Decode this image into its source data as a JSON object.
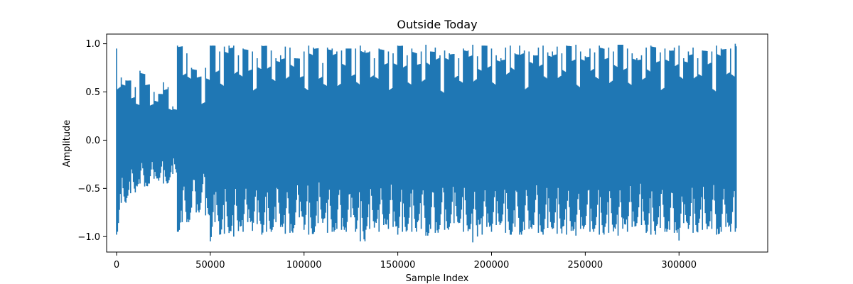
{
  "chart_data": {
    "type": "line",
    "title": "Outside Today",
    "xlabel": "Sample Index",
    "ylabel": "Amplitude",
    "xlim": [
      -5300,
      347300
    ],
    "ylim": [
      -1.16,
      1.1
    ],
    "x_ticks": [
      0,
      50000,
      100000,
      150000,
      200000,
      250000,
      300000
    ],
    "x_tick_labels": [
      "0",
      "50000",
      "100000",
      "150000",
      "200000",
      "250000",
      "300000"
    ],
    "y_ticks": [
      -1.0,
      -0.5,
      0.0,
      0.5,
      1.0
    ],
    "y_tick_labels": [
      "−1.0",
      "−0.5",
      "0.0",
      "0.5",
      "1.0"
    ],
    "grid": false,
    "series": [
      {
        "color": "#1f77b4",
        "x_start": 0,
        "x_end": 330500,
        "x_step": 2500,
        "envelope_max": [
          0.95,
          0.65,
          0.62,
          0.55,
          0.55,
          0.72,
          0.6,
          0.55,
          0.5,
          0.48,
          0.6,
          0.55,
          0.35,
          0.98,
          0.9,
          0.9,
          0.75,
          0.7,
          0.62,
          0.75,
          0.98,
          0.85,
          0.92,
          0.97,
          0.98,
          0.98,
          0.88,
          0.95,
          0.8,
          0.92,
          0.85,
          0.98,
          0.94,
          0.93,
          0.85,
          0.88,
          0.97,
          0.96,
          0.85,
          0.75,
          0.92,
          0.98,
          0.96,
          0.85,
          0.8,
          0.96,
          0.95,
          0.92,
          0.93,
          0.95,
          0.8,
          0.95,
          0.98,
          0.93,
          0.92,
          0.85,
          0.95,
          0.87,
          0.92,
          0.9,
          0.98,
          0.95,
          0.88,
          0.95,
          0.82,
          0.92,
          0.99,
          0.92,
          0.96,
          0.88,
          0.93,
          0.9,
          0.86,
          0.85,
          0.95,
          0.93,
          0.99,
          0.87,
          0.98,
          0.9,
          0.95,
          0.88,
          0.85,
          0.96,
          0.98,
          0.9,
          0.98,
          0.93,
          0.92,
          0.88,
          0.96,
          0.98,
          0.91,
          0.92,
          0.97,
          0.9,
          0.98,
          0.94,
          0.99,
          0.92,
          0.87,
          0.95,
          0.91,
          0.98,
          0.9,
          0.96,
          0.92,
          0.99,
          0.87,
          0.95,
          0.9,
          0.85,
          0.88,
          0.96,
          0.98,
          0.89,
          0.91,
          0.95,
          0.93,
          0.96,
          0.98,
          0.85,
          0.92,
          0.96,
          0.85,
          0.93,
          0.9,
          0.92,
          0.98,
          0.95,
          0.9,
          0.95,
          1.0
        ],
        "envelope_min": [
          -0.98,
          -0.65,
          -0.6,
          -0.55,
          -0.48,
          -0.45,
          -0.48,
          -0.45,
          -0.4,
          -0.42,
          -0.45,
          -0.42,
          -0.35,
          -0.95,
          -0.85,
          -0.85,
          -0.7,
          -0.75,
          -0.62,
          -0.78,
          -1.05,
          -0.85,
          -0.98,
          -0.97,
          -0.95,
          -1.0,
          -0.9,
          -0.95,
          -0.85,
          -0.94,
          -0.87,
          -0.98,
          -0.95,
          -0.93,
          -0.85,
          -0.9,
          -0.97,
          -0.96,
          -0.88,
          -0.8,
          -0.93,
          -0.98,
          -0.96,
          -0.86,
          -0.82,
          -0.96,
          -0.95,
          -0.92,
          -0.93,
          -0.95,
          -0.8,
          -0.95,
          -1.05,
          -0.93,
          -0.92,
          -0.86,
          -0.95,
          -0.88,
          -0.92,
          -0.9,
          -0.98,
          -0.95,
          -0.88,
          -0.95,
          -0.85,
          -0.92,
          -0.99,
          -0.92,
          -0.96,
          -0.88,
          -0.93,
          -0.9,
          -0.86,
          -0.86,
          -0.95,
          -0.93,
          -1.06,
          -0.88,
          -0.98,
          -0.9,
          -0.95,
          -0.88,
          -0.86,
          -0.96,
          -0.98,
          -0.9,
          -0.98,
          -0.93,
          -0.92,
          -0.88,
          -0.96,
          -0.98,
          -0.91,
          -0.92,
          -0.97,
          -0.9,
          -0.98,
          -0.94,
          -0.99,
          -0.92,
          -0.88,
          -0.95,
          -0.91,
          -0.98,
          -0.9,
          -0.96,
          -0.92,
          -0.99,
          -0.88,
          -0.95,
          -0.9,
          -0.86,
          -0.88,
          -0.96,
          -0.98,
          -0.89,
          -0.91,
          -0.95,
          -0.93,
          -0.96,
          -1.04,
          -0.86,
          -0.92,
          -0.96,
          -0.86,
          -0.93,
          -0.9,
          -0.92,
          -0.98,
          -0.95,
          -0.9,
          -0.95,
          -0.95
        ]
      }
    ]
  }
}
